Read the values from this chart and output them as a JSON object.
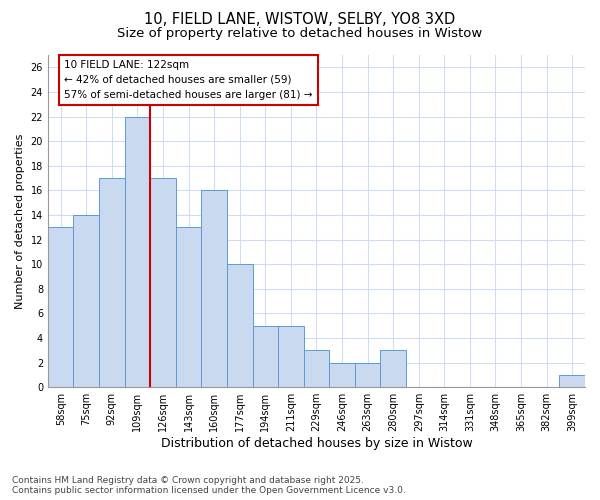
{
  "title_line1": "10, FIELD LANE, WISTOW, SELBY, YO8 3XD",
  "title_line2": "Size of property relative to detached houses in Wistow",
  "xlabel": "Distribution of detached houses by size in Wistow",
  "ylabel": "Number of detached properties",
  "categories": [
    "58sqm",
    "75sqm",
    "92sqm",
    "109sqm",
    "126sqm",
    "143sqm",
    "160sqm",
    "177sqm",
    "194sqm",
    "211sqm",
    "229sqm",
    "246sqm",
    "263sqm",
    "280sqm",
    "297sqm",
    "314sqm",
    "331sqm",
    "348sqm",
    "365sqm",
    "382sqm",
    "399sqm"
  ],
  "values": [
    13,
    14,
    17,
    22,
    17,
    13,
    16,
    10,
    5,
    5,
    3,
    2,
    2,
    3,
    0,
    0,
    0,
    0,
    0,
    0,
    1
  ],
  "bar_color": "#c9d9f0",
  "bar_edge_color": "#5b9bd5",
  "red_line_index": 4,
  "red_line_label": "10 FIELD LANE: 122sqm",
  "annotation_line2": "← 42% of detached houses are smaller (59)",
  "annotation_line3": "57% of semi-detached houses are larger (81) →",
  "ylim": [
    0,
    27
  ],
  "yticks": [
    0,
    2,
    4,
    6,
    8,
    10,
    12,
    14,
    16,
    18,
    20,
    22,
    24,
    26
  ],
  "footnote_line1": "Contains HM Land Registry data © Crown copyright and database right 2025.",
  "footnote_line2": "Contains public sector information licensed under the Open Government Licence v3.0.",
  "bg_color": "#ffffff",
  "plot_bg_color": "#ffffff",
  "grid_color": "#d0ddf0",
  "annotation_box_color": "#ffffff",
  "annotation_box_edge": "#cc0000",
  "title_fontsize": 10.5,
  "subtitle_fontsize": 9.5,
  "axis_label_fontsize": 9,
  "tick_fontsize": 7,
  "annotation_fontsize": 7.5,
  "footnote_fontsize": 6.5,
  "ylabel_fontsize": 8
}
